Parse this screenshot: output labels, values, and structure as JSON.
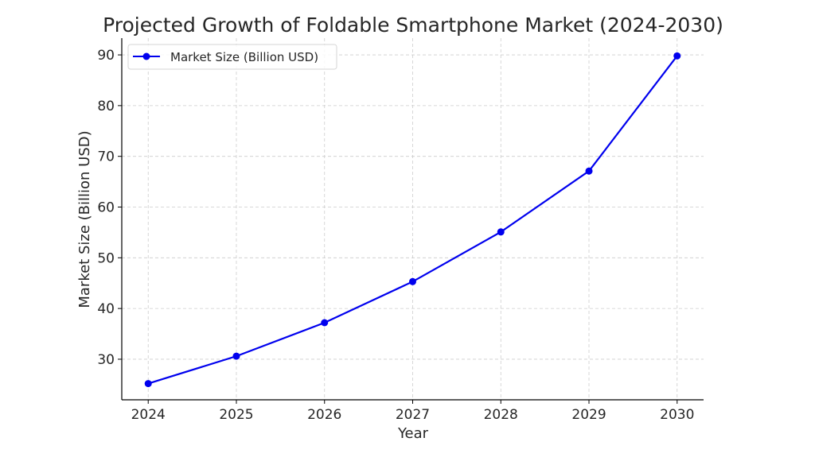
{
  "chart_data": {
    "type": "line",
    "title": "Projected Growth of Foldable Smartphone Market (2024-2030)",
    "xlabel": "Year",
    "ylabel": "Market Size (Billion USD)",
    "categories": [
      "2024",
      "2025",
      "2026",
      "2027",
      "2028",
      "2029",
      "2030"
    ],
    "x": [
      2024,
      2025,
      2026,
      2027,
      2028,
      2029,
      2030
    ],
    "series": [
      {
        "name": "Market Size (Billion USD)",
        "values": [
          25.2,
          30.6,
          37.2,
          45.3,
          55.1,
          67.1,
          89.8
        ],
        "color": "#0000ee",
        "marker": "circle"
      }
    ],
    "yticks": [
      30,
      40,
      50,
      60,
      70,
      80,
      90
    ],
    "xlim": [
      2023.7,
      2030.3
    ],
    "ylim": [
      22.0,
      93.3
    ],
    "grid": true,
    "legend": "top-left"
  }
}
